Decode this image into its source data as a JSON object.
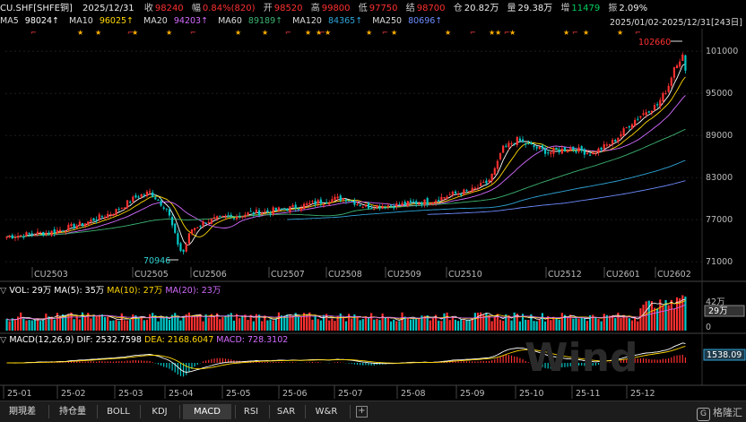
{
  "header": {
    "symbol": "CU.SHF[SHFE铜]",
    "date": "2025/12/31",
    "close_label": "收",
    "close": "98240",
    "chg_label": "幅",
    "chg": "0.84%(820)",
    "open_label": "开",
    "open": "98520",
    "high_label": "高",
    "high": "99800",
    "low_label": "低",
    "low": "97750",
    "settle_label": "结",
    "settle": "98700",
    "oi_label": "仓",
    "oi": "20.82万",
    "vol_label": "量",
    "vol": "29.38万",
    "oichg_label": "增",
    "oichg": "11479",
    "amp_label": "振",
    "amp": "2.09%"
  },
  "ma_legend": [
    {
      "label": "MA5",
      "value": "98024↑",
      "color": "#ffffff"
    },
    {
      "label": "MA10",
      "value": "96025↑",
      "color": "#ffd700"
    },
    {
      "label": "MA20",
      "value": "94203↑",
      "color": "#d36bff"
    },
    {
      "label": "MA60",
      "value": "89189↑",
      "color": "#3cb371"
    },
    {
      "label": "MA120",
      "value": "84365↑",
      "color": "#2fa4d8"
    },
    {
      "label": "MA250",
      "value": "80696↑",
      "color": "#6d8cff"
    }
  ],
  "range_text": "2025/01/02-2025/12/31[243日]",
  "price_axis": [
    "101000",
    "95000",
    "89000",
    "83000",
    "77000",
    "71000"
  ],
  "max_annotation": "102660",
  "min_annotation": "70946",
  "contract_labels": [
    "CU2503",
    "CU2505",
    "CU2506",
    "CU2507",
    "CU2508",
    "CU2509",
    "CU2510",
    "CU2512",
    "CU2601",
    "CU2602"
  ],
  "vol_panel": {
    "label": "VOL: 29万",
    "ma5": "MA(5): 35万",
    "ma10": "MA(10): 27万",
    "ma20": "MA(20): 23万",
    "axis_top": "42万",
    "current": "29万",
    "axis_zero": "0"
  },
  "macd_panel": {
    "label": "MACD(12,26,9)",
    "dif": "DIF: 2532.7598",
    "dea": "DEA: 2168.6047",
    "macd": "MACD: 728.3102",
    "current": "1538.09"
  },
  "watermark": "Wind",
  "month_labels": [
    "25-01",
    "25-02",
    "25-03",
    "25-04",
    "25-05",
    "25-06",
    "25-07",
    "25-08",
    "25-09",
    "25-10",
    "25-11",
    "25-12"
  ],
  "tabs": [
    "期現差",
    "持仓量",
    "BOLL",
    "KDJ",
    "MACD",
    "RSI",
    "SAR",
    "W&R"
  ],
  "active_tab": "MACD",
  "plus_label": "+",
  "brand": "格隆汇",
  "colors": {
    "up": "#ff3030",
    "down": "#00c8c8",
    "bg": "#000000",
    "grid": "#333333"
  }
}
